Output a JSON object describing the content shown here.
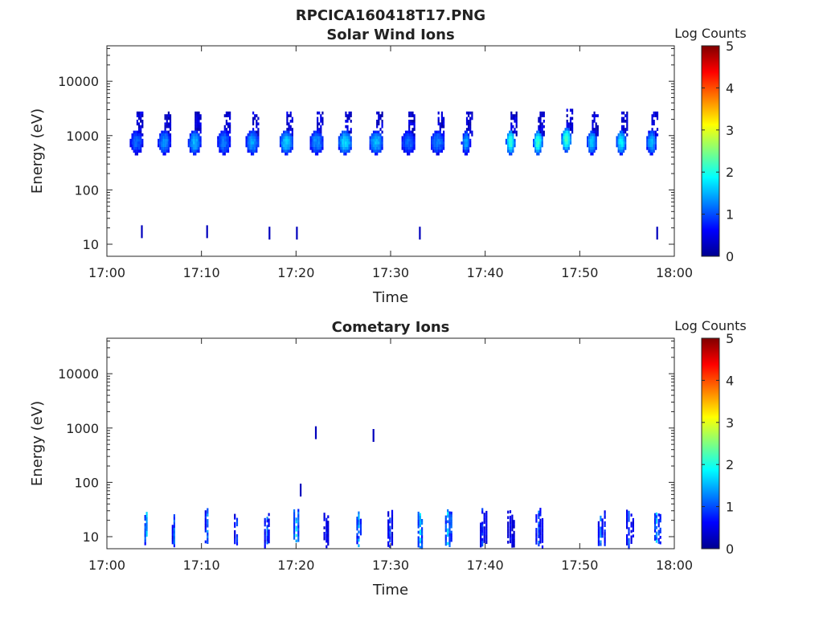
{
  "figure": {
    "title": "RPCICA160418T17.PNG"
  },
  "chart_data": [
    {
      "type": "heatmap",
      "title": "Solar Wind Ions",
      "xlabel": "Time",
      "ylabel": "Energy (eV)",
      "x_ticks": [
        "17:00",
        "17:10",
        "17:20",
        "17:30",
        "17:40",
        "17:50",
        "18:00"
      ],
      "x_range": [
        "17:00",
        "18:00"
      ],
      "y_scale": "log",
      "y_ticks": [
        {
          "value": 10,
          "label": "10"
        },
        {
          "value": 100,
          "label": "100"
        },
        {
          "value": 1000,
          "label": "1000"
        },
        {
          "value": 10000,
          "label": "10000"
        }
      ],
      "y_range": [
        6,
        45000
      ],
      "colorbar": {
        "label": "Log Counts",
        "range": [
          0,
          5
        ],
        "ticks": [
          {
            "value": 0,
            "label": "0"
          },
          {
            "value": 1,
            "label": "1"
          },
          {
            "value": 2,
            "label": "2"
          },
          {
            "value": 3,
            "label": "3"
          },
          {
            "value": 4,
            "label": "4"
          },
          {
            "value": 5,
            "label": "5"
          }
        ],
        "colormap": "jet"
      },
      "blobs": [
        {
          "t": "17:03:03",
          "e": 800,
          "peak": 1.0
        },
        {
          "t": "17:06:00",
          "e": 800,
          "peak": 1.2
        },
        {
          "t": "17:09:12",
          "e": 800,
          "peak": 1.4
        },
        {
          "t": "17:12:18",
          "e": 800,
          "peak": 1.1
        },
        {
          "t": "17:15:18",
          "e": 800,
          "peak": 1.3
        },
        {
          "t": "17:18:54",
          "e": 800,
          "peak": 1.5
        },
        {
          "t": "17:22:06",
          "e": 800,
          "peak": 1.2
        },
        {
          "t": "17:25:06",
          "e": 800,
          "peak": 1.6
        },
        {
          "t": "17:28:24",
          "e": 800,
          "peak": 1.4
        },
        {
          "t": "17:31:48",
          "e": 800,
          "peak": 1.0
        },
        {
          "t": "17:34:54",
          "e": 800,
          "peak": 1.1
        },
        {
          "t": "17:37:54",
          "e": 800,
          "peak": 1.3
        },
        {
          "t": "17:42:36",
          "e": 800,
          "peak": 2.0
        },
        {
          "t": "17:45:30",
          "e": 800,
          "peak": 2.0
        },
        {
          "t": "17:48:30",
          "e": 900,
          "peak": 2.1
        },
        {
          "t": "17:51:12",
          "e": 800,
          "peak": 1.5
        },
        {
          "t": "17:54:18",
          "e": 800,
          "peak": 1.7
        },
        {
          "t": "17:57:30",
          "e": 800,
          "peak": 1.4
        }
      ],
      "specks": [
        {
          "t": "17:03:36",
          "e": 17,
          "v": 0.3
        },
        {
          "t": "17:10:30",
          "e": 17,
          "v": 0.3
        },
        {
          "t": "17:17:06",
          "e": 16,
          "v": 0.3
        },
        {
          "t": "17:20:00",
          "e": 16,
          "v": 0.3
        },
        {
          "t": "17:33:00",
          "e": 16,
          "v": 0.3
        },
        {
          "t": "17:58:06",
          "e": 16,
          "v": 0.3
        }
      ]
    },
    {
      "type": "heatmap",
      "title": "Cometary Ions",
      "xlabel": "Time",
      "ylabel": "Energy (eV)",
      "x_ticks": [
        "17:00",
        "17:10",
        "17:20",
        "17:30",
        "17:40",
        "17:50",
        "18:00"
      ],
      "x_range": [
        "17:00",
        "18:00"
      ],
      "y_scale": "log",
      "y_ticks": [
        {
          "value": 10,
          "label": "10"
        },
        {
          "value": 100,
          "label": "100"
        },
        {
          "value": 1000,
          "label": "1000"
        },
        {
          "value": 10000,
          "label": "10000"
        }
      ],
      "y_range": [
        6,
        45000
      ],
      "colorbar": {
        "label": "Log Counts",
        "range": [
          0,
          5
        ],
        "ticks": [
          {
            "value": 0,
            "label": "0"
          },
          {
            "value": 1,
            "label": "1"
          },
          {
            "value": 2,
            "label": "2"
          },
          {
            "value": 3,
            "label": "3"
          },
          {
            "value": 4,
            "label": "4"
          },
          {
            "value": 5,
            "label": "5"
          }
        ],
        "colormap": "jet"
      },
      "streaks": [
        {
          "t": "17:04:12",
          "peak": 1.8
        },
        {
          "t": "17:07:06",
          "peak": 1.2
        },
        {
          "t": "17:10:36",
          "peak": 1.3
        },
        {
          "t": "17:13:42",
          "peak": 1.1
        },
        {
          "t": "17:16:54",
          "peak": 1.2
        },
        {
          "t": "17:20:00",
          "peak": 1.9
        },
        {
          "t": "17:23:12",
          "peak": 0.8
        },
        {
          "t": "17:26:36",
          "peak": 1.5
        },
        {
          "t": "17:29:54",
          "peak": 1.0
        },
        {
          "t": "17:33:06",
          "peak": 1.9
        },
        {
          "t": "17:36:00",
          "peak": 1.8
        },
        {
          "t": "17:39:42",
          "peak": 1.0
        },
        {
          "t": "17:42:36",
          "peak": 0.8
        },
        {
          "t": "17:45:36",
          "peak": 1.2
        },
        {
          "t": "17:52:12",
          "peak": 1.3
        },
        {
          "t": "17:55:12",
          "peak": 1.1
        },
        {
          "t": "17:58:06",
          "peak": 1.6
        }
      ],
      "specks": [
        {
          "t": "17:22:00",
          "e": 820,
          "v": 0.3
        },
        {
          "t": "17:28:06",
          "e": 730,
          "v": 0.3
        },
        {
          "t": "17:20:24",
          "e": 72,
          "v": 0.3
        }
      ]
    }
  ]
}
